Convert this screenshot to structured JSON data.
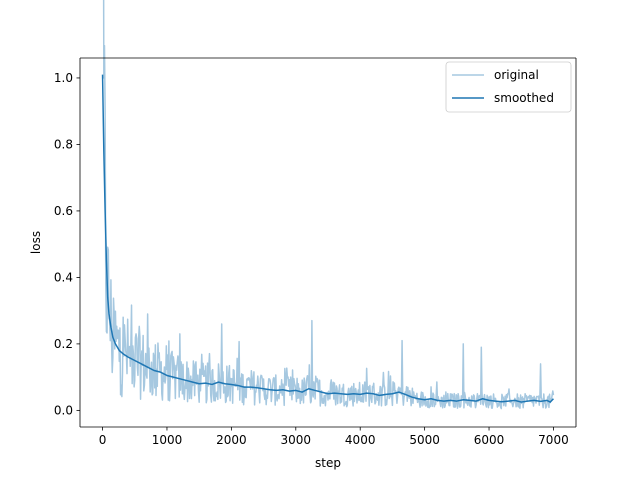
{
  "chart_data": {
    "type": "line",
    "title": "",
    "xlabel": "step",
    "ylabel": "loss",
    "xlim": [
      -350,
      7350
    ],
    "ylim": [
      -0.05,
      1.06
    ],
    "xticks": [
      0,
      1000,
      2000,
      3000,
      4000,
      5000,
      6000,
      7000
    ],
    "yticks": [
      0.0,
      0.2,
      0.4,
      0.6,
      0.8,
      1.0
    ],
    "xtick_labels": [
      "0",
      "1000",
      "2000",
      "3000",
      "4000",
      "5000",
      "6000",
      "7000"
    ],
    "ytick_labels": [
      "0.0",
      "0.2",
      "0.4",
      "0.6",
      "0.8",
      "1.0"
    ],
    "grid": false,
    "legend_position": "top-right",
    "series": [
      {
        "name": "original",
        "color": "#a6c8e0",
        "smoothness": 0.0,
        "noise_scale": 0.55,
        "spikes": [
          {
            "x": 20,
            "y": 1.0
          },
          {
            "x": 50,
            "y": 0.38
          },
          {
            "x": 110,
            "y": 0.27
          },
          {
            "x": 320,
            "y": 0.28
          },
          {
            "x": 700,
            "y": 0.29
          },
          {
            "x": 1200,
            "y": 0.23
          },
          {
            "x": 1850,
            "y": 0.26
          },
          {
            "x": 3250,
            "y": 0.27
          },
          {
            "x": 4650,
            "y": 0.21
          },
          {
            "x": 5600,
            "y": 0.2
          },
          {
            "x": 5880,
            "y": 0.19
          },
          {
            "x": 6800,
            "y": 0.14
          }
        ]
      },
      {
        "name": "smoothed",
        "color": "#1f77b4",
        "points": [
          [
            0,
            1.01
          ],
          [
            20,
            0.78
          ],
          [
            40,
            0.6
          ],
          [
            60,
            0.45
          ],
          [
            80,
            0.34
          ],
          [
            100,
            0.29
          ],
          [
            130,
            0.25
          ],
          [
            160,
            0.22
          ],
          [
            200,
            0.2
          ],
          [
            260,
            0.18
          ],
          [
            320,
            0.17
          ],
          [
            400,
            0.16
          ],
          [
            500,
            0.15
          ],
          [
            600,
            0.14
          ],
          [
            700,
            0.13
          ],
          [
            800,
            0.12
          ],
          [
            900,
            0.115
          ],
          [
            1000,
            0.105
          ],
          [
            1100,
            0.1
          ],
          [
            1200,
            0.095
          ],
          [
            1300,
            0.09
          ],
          [
            1400,
            0.085
          ],
          [
            1500,
            0.08
          ],
          [
            1600,
            0.082
          ],
          [
            1700,
            0.078
          ],
          [
            1800,
            0.085
          ],
          [
            1900,
            0.08
          ],
          [
            2000,
            0.078
          ],
          [
            2100,
            0.075
          ],
          [
            2200,
            0.07
          ],
          [
            2300,
            0.07
          ],
          [
            2400,
            0.068
          ],
          [
            2500,
            0.065
          ],
          [
            2600,
            0.062
          ],
          [
            2700,
            0.06
          ],
          [
            2800,
            0.062
          ],
          [
            2900,
            0.058
          ],
          [
            3000,
            0.06
          ],
          [
            3100,
            0.055
          ],
          [
            3200,
            0.065
          ],
          [
            3300,
            0.06
          ],
          [
            3400,
            0.055
          ],
          [
            3500,
            0.05
          ],
          [
            3600,
            0.052
          ],
          [
            3700,
            0.05
          ],
          [
            3800,
            0.048
          ],
          [
            3900,
            0.05
          ],
          [
            4000,
            0.048
          ],
          [
            4100,
            0.052
          ],
          [
            4200,
            0.05
          ],
          [
            4300,
            0.045
          ],
          [
            4400,
            0.048
          ],
          [
            4500,
            0.05
          ],
          [
            4600,
            0.055
          ],
          [
            4700,
            0.048
          ],
          [
            4800,
            0.04
          ],
          [
            4900,
            0.035
          ],
          [
            5000,
            0.032
          ],
          [
            5100,
            0.035
          ],
          [
            5200,
            0.03
          ],
          [
            5300,
            0.028
          ],
          [
            5400,
            0.03
          ],
          [
            5500,
            0.028
          ],
          [
            5600,
            0.032
          ],
          [
            5700,
            0.03
          ],
          [
            5800,
            0.028
          ],
          [
            5900,
            0.035
          ],
          [
            6000,
            0.03
          ],
          [
            6100,
            0.028
          ],
          [
            6200,
            0.026
          ],
          [
            6300,
            0.028
          ],
          [
            6400,
            0.03
          ],
          [
            6500,
            0.025
          ],
          [
            6600,
            0.028
          ],
          [
            6700,
            0.03
          ],
          [
            6800,
            0.027
          ],
          [
            6900,
            0.03
          ],
          [
            6950,
            0.025
          ],
          [
            7000,
            0.035
          ]
        ]
      }
    ]
  }
}
